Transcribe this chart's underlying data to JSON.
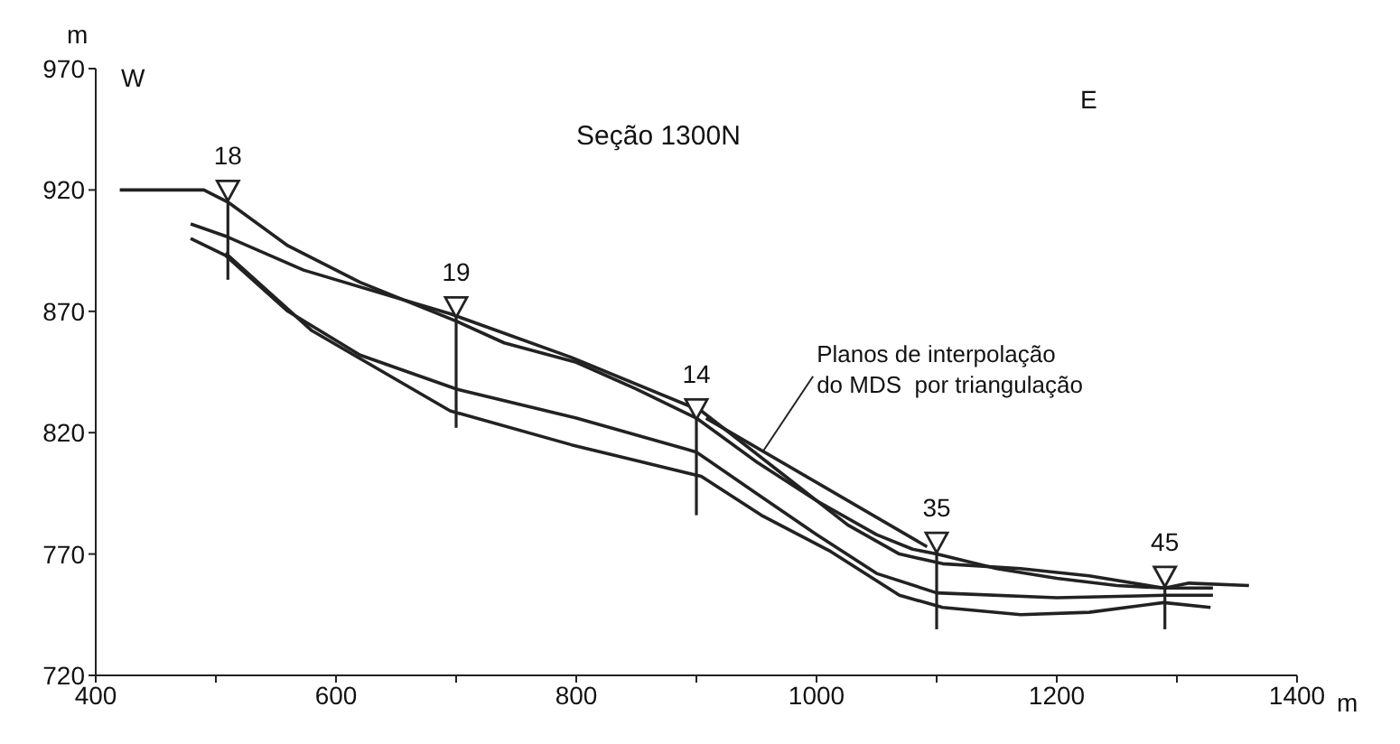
{
  "chart_data": {
    "type": "line",
    "title": "Seção 1300N",
    "xlabel": "m",
    "ylabel": "m",
    "xlim": [
      400,
      1400
    ],
    "xticks": [
      400,
      {
        "value": 500,
        "label": null
      },
      600,
      {
        "value": 700,
        "label": null
      },
      800,
      {
        "value": 900,
        "label": null
      },
      1000,
      {
        "value": 1100,
        "label": null
      },
      1200,
      {
        "value": 1300,
        "label": null
      },
      1400
    ],
    "ylim": [
      720,
      970
    ],
    "yticks": [
      720,
      770,
      820,
      870,
      920,
      970
    ],
    "marker": "none",
    "line_style": "solid",
    "annotations": [
      "W",
      "E",
      {
        "text": "Planos de interpolação\ndo MDS  por triangulação",
        "x": 955,
        "y": 812
      },
      {
        "text": "18",
        "x": 510,
        "y": 920
      },
      {
        "text": "19",
        "x": 700,
        "y": 872
      },
      {
        "text": "14",
        "x": 900,
        "y": 830
      },
      {
        "text": "35",
        "x": 1100,
        "y": 775
      },
      {
        "text": "45",
        "x": 1290,
        "y": 761
      }
    ],
    "series": [
      {
        "color": "#222222",
        "x": [
          420,
          490,
          510,
          560,
          620,
          700,
          740,
          800,
          850,
          900,
          950,
          1000,
          1050,
          1080,
          1100,
          1150,
          1200,
          1250,
          1290,
          1310,
          1360
        ],
        "values": [
          920,
          920,
          915,
          897,
          882,
          866,
          857,
          849,
          838,
          826,
          808,
          792,
          778,
          772,
          770,
          764,
          760,
          757,
          756,
          758,
          757
        ]
      },
      {
        "color": "#222222",
        "x": [
          908,
          1092
        ],
        "values": [
          826,
          773
        ]
      },
      {
        "color": "#222222",
        "x": [
          479,
          508,
          573,
          695,
          796,
          904,
          969,
          1026,
          1069,
          1105,
          1170,
          1227,
          1289,
          1330
        ],
        "values": [
          906,
          901,
          887,
          869,
          851,
          829,
          804,
          782,
          770,
          766,
          764,
          761,
          756,
          756
        ]
      },
      {
        "color": "#222222",
        "x": [
          479,
          508,
          560,
          620,
          700,
          800,
          900,
          950,
          1000,
          1050,
          1100,
          1200,
          1290,
          1330
        ],
        "values": [
          900,
          893,
          870,
          852,
          838,
          826,
          812,
          795,
          778,
          762,
          754,
          752,
          753,
          753
        ]
      },
      {
        "color": "#222222",
        "x": [
          508,
          580,
          695,
          796,
          904,
          954,
          1012,
          1069,
          1105,
          1170,
          1227,
          1289,
          1328
        ],
        "values": [
          894,
          862,
          829,
          815,
          802,
          786,
          771,
          753,
          748,
          745,
          746,
          750,
          748
        ]
      },
      {
        "type": "scatter",
        "marker": "triangle",
        "color": "#222222",
        "x": [
          510,
          700,
          900,
          1100,
          1290
        ],
        "values": [
          920,
          872,
          830,
          775,
          761
        ],
        "errors": [
          [
            883,
            920
          ],
          [
            822,
            872
          ],
          [
            786,
            830
          ],
          [
            739,
            775
          ],
          [
            739,
            761
          ]
        ]
      }
    ]
  }
}
